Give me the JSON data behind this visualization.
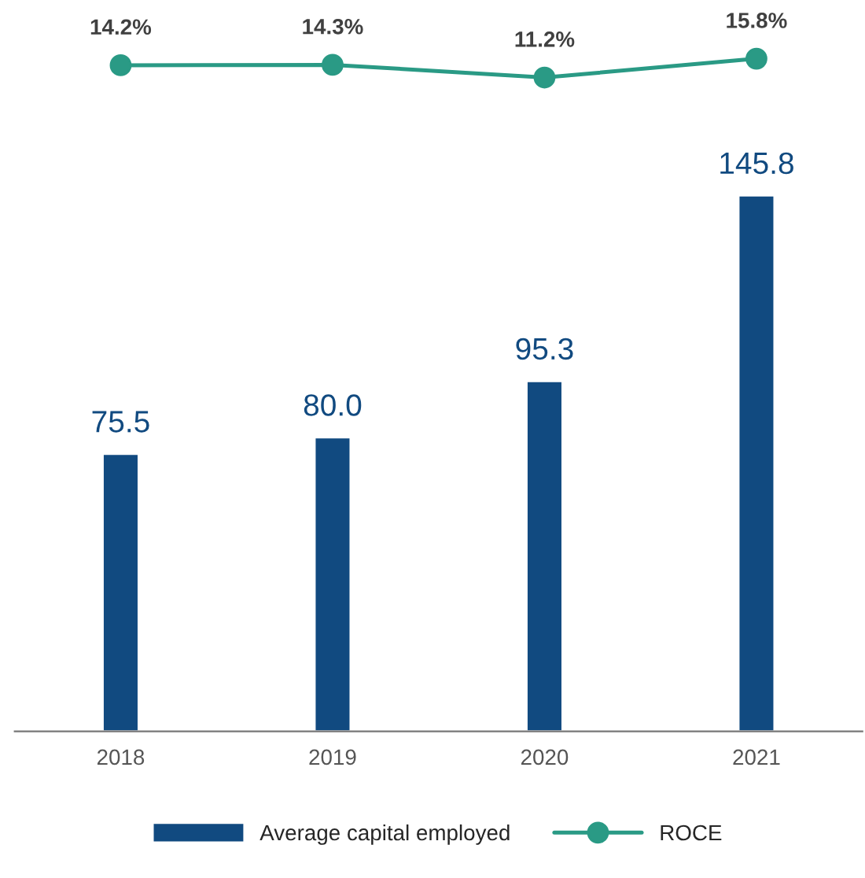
{
  "chart_data": [
    {
      "type": "line",
      "categories": [
        "2018",
        "2019",
        "2020",
        "2021"
      ],
      "series": [
        {
          "name": "ROCE",
          "color": "#2a9a85",
          "values": [
            14.2,
            14.3,
            11.2,
            15.8
          ],
          "value_labels": [
            "14.2%",
            "14.3%",
            "11.2%",
            "15.8%"
          ]
        }
      ],
      "tick_labels": false,
      "data_labels": true,
      "marker": "circle",
      "grid": false
    },
    {
      "type": "bar",
      "categories": [
        "2018",
        "2019",
        "2020",
        "2021"
      ],
      "series": [
        {
          "name": "Average capital employed",
          "color": "#114a80",
          "values": [
            75.5,
            80.0,
            95.3,
            145.8
          ],
          "value_labels": [
            "75.5",
            "80.0",
            "95.3",
            "145.8"
          ]
        }
      ],
      "tick_labels": "x",
      "data_labels": true,
      "grid": false,
      "legend": "bottom"
    }
  ]
}
